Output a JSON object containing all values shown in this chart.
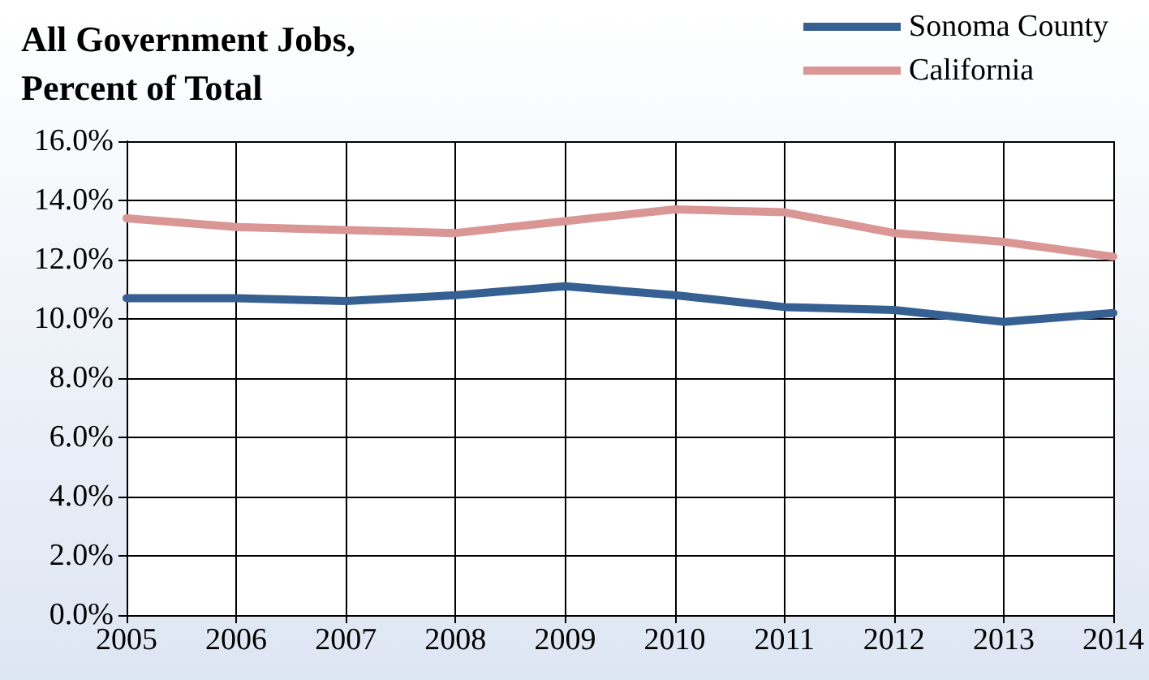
{
  "chart_data": {
    "type": "line",
    "title": "All Government Jobs,\nPercent of Total",
    "categories": [
      "2005",
      "2006",
      "2007",
      "2008",
      "2009",
      "2010",
      "2011",
      "2012",
      "2013",
      "2014"
    ],
    "series": [
      {
        "name": "Sonoma County",
        "color": "#376092",
        "values": [
          10.7,
          10.7,
          10.6,
          10.8,
          11.1,
          10.8,
          10.4,
          10.3,
          9.9,
          10.2
        ]
      },
      {
        "name": "California",
        "color": "#d99694",
        "values": [
          13.4,
          13.1,
          13.0,
          12.9,
          13.3,
          13.7,
          13.6,
          12.9,
          12.6,
          12.1
        ]
      }
    ],
    "ylim": [
      0,
      16
    ],
    "yticks": [
      {
        "value": 0,
        "label": "0.0%"
      },
      {
        "value": 2,
        "label": "2.0%"
      },
      {
        "value": 4,
        "label": "4.0%"
      },
      {
        "value": 6,
        "label": "6.0%"
      },
      {
        "value": 8,
        "label": "8.0%"
      },
      {
        "value": 10,
        "label": "10.0%"
      },
      {
        "value": 12,
        "label": "12.0%"
      },
      {
        "value": 14,
        "label": "14.0%"
      },
      {
        "value": 16,
        "label": "16.0%"
      }
    ],
    "grid": true,
    "legend": "top right",
    "marker": "none",
    "line_style": "solid"
  }
}
